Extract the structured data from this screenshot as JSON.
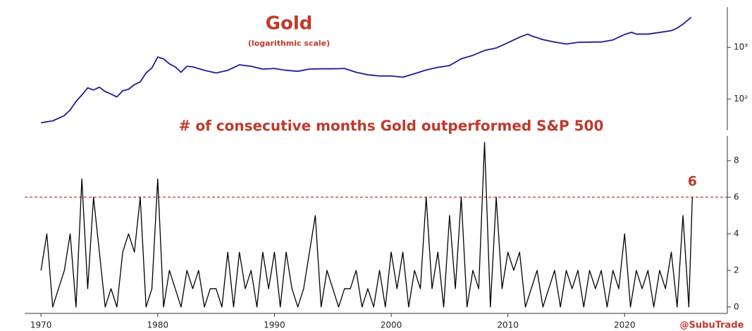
{
  "chart_data": [
    {
      "type": "line",
      "title": "Gold",
      "subtitle": "(logarithmic scale)",
      "color": "#1c1c9a",
      "log_scale": true,
      "grid": false,
      "xlim": [
        1968.6,
        2028.8
      ],
      "ylim": [
        25,
        6000
      ],
      "yticks": [
        {
          "value": 100,
          "label": "10²"
        },
        {
          "value": 1000,
          "label": "10³"
        }
      ],
      "x": [
        1970,
        1971,
        1972,
        1972.5,
        1973,
        1973.5,
        1974,
        1974.5,
        1975,
        1975.5,
        1976,
        1976.5,
        1977,
        1977.5,
        1978,
        1978.5,
        1979,
        1979.5,
        1980,
        1980.5,
        1981,
        1981.5,
        1982,
        1982.5,
        1983,
        1984,
        1985,
        1986,
        1987,
        1988,
        1989,
        1990,
        1991,
        1992,
        1993,
        1994,
        1995,
        1996,
        1997,
        1998,
        1999,
        2000,
        2001,
        2002,
        2003,
        2004,
        2005,
        2006,
        2007,
        2008,
        2009,
        2010,
        2011,
        2011.7,
        2012,
        2013,
        2014,
        2015,
        2016,
        2017,
        2018,
        2019,
        2020,
        2020.6,
        2021,
        2022,
        2023,
        2024,
        2024.5,
        2025,
        2025.7
      ],
      "values": [
        35,
        38,
        48,
        62,
        90,
        120,
        165,
        150,
        170,
        140,
        125,
        110,
        145,
        155,
        190,
        215,
        320,
        400,
        650,
        600,
        480,
        420,
        330,
        430,
        420,
        360,
        320,
        360,
        460,
        430,
        380,
        390,
        360,
        345,
        380,
        385,
        385,
        390,
        330,
        295,
        280,
        280,
        265,
        310,
        365,
        410,
        445,
        600,
        700,
        870,
        970,
        1225,
        1570,
        1800,
        1670,
        1410,
        1265,
        1160,
        1250,
        1260,
        1270,
        1390,
        1770,
        1950,
        1800,
        1800,
        1940,
        2100,
        2350,
        2800,
        3800
      ]
    },
    {
      "type": "line",
      "title": "# of consecutive months Gold outperformed S&P 500",
      "color": "#000000",
      "log_scale": false,
      "grid": false,
      "xlim": [
        1968.6,
        2028.8
      ],
      "ylim": [
        -0.35,
        9.35
      ],
      "xticks": [
        1970,
        1980,
        1990,
        2000,
        2010,
        2020
      ],
      "yticks": [
        0,
        2,
        4,
        6,
        8
      ],
      "reference_line": {
        "value": 6,
        "label": "6",
        "color": "#c0392b",
        "style": "dashed"
      },
      "source": "@SubuTrade",
      "x": [
        1970,
        1970.5,
        1971,
        1971.5,
        1972,
        1972.5,
        1973,
        1973.5,
        1974,
        1974.5,
        1975,
        1975.5,
        1976,
        1976.5,
        1977,
        1977.5,
        1978,
        1978.5,
        1979,
        1979.5,
        1980,
        1980.5,
        1981,
        1981.5,
        1982,
        1982.5,
        1983,
        1983.5,
        1984,
        1984.5,
        1985,
        1985.5,
        1986,
        1986.5,
        1987,
        1987.5,
        1988,
        1988.5,
        1989,
        1989.5,
        1990,
        1990.5,
        1991,
        1991.5,
        1992,
        1992.5,
        1993,
        1993.5,
        1994,
        1994.5,
        1995,
        1995.5,
        1996,
        1996.5,
        1997,
        1997.5,
        1998,
        1998.5,
        1999,
        1999.5,
        2000,
        2000.5,
        2001,
        2001.5,
        2002,
        2002.5,
        2003,
        2003.5,
        2004,
        2004.5,
        2005,
        2005.5,
        2006,
        2006.5,
        2007,
        2007.5,
        2008,
        2008.5,
        2009,
        2009.5,
        2010,
        2010.5,
        2011,
        2011.5,
        2012,
        2012.5,
        2013,
        2013.5,
        2014,
        2014.5,
        2015,
        2015.5,
        2016,
        2016.5,
        2017,
        2017.5,
        2018,
        2018.5,
        2019,
        2019.5,
        2020,
        2020.5,
        2021,
        2021.5,
        2022,
        2022.5,
        2023,
        2023.5,
        2024,
        2024.5,
        2025,
        2025.5,
        2025.8
      ],
      "values": [
        2,
        4,
        0,
        1,
        2,
        4,
        0,
        7,
        1,
        6,
        3,
        0,
        1,
        0,
        3,
        4,
        3,
        6,
        0,
        1,
        7,
        0,
        2,
        1,
        0,
        2,
        1,
        2,
        0,
        1,
        1,
        0,
        3,
        0,
        3,
        1,
        2,
        0,
        3,
        1,
        3,
        0,
        3,
        1,
        0,
        1,
        3,
        5,
        0,
        2,
        1,
        0,
        1,
        1,
        2,
        0,
        1,
        0,
        2,
        0,
        3,
        1,
        3,
        0,
        2,
        1,
        6,
        1,
        3,
        0,
        5,
        1,
        6,
        0,
        2,
        1,
        9,
        0,
        6,
        1,
        3,
        2,
        3,
        0,
        1,
        2,
        0,
        1,
        2,
        0,
        2,
        1,
        2,
        0,
        2,
        1,
        2,
        0,
        2,
        1,
        4,
        0,
        2,
        1,
        2,
        0,
        2,
        1,
        3,
        0,
        5,
        0,
        6
      ]
    }
  ]
}
